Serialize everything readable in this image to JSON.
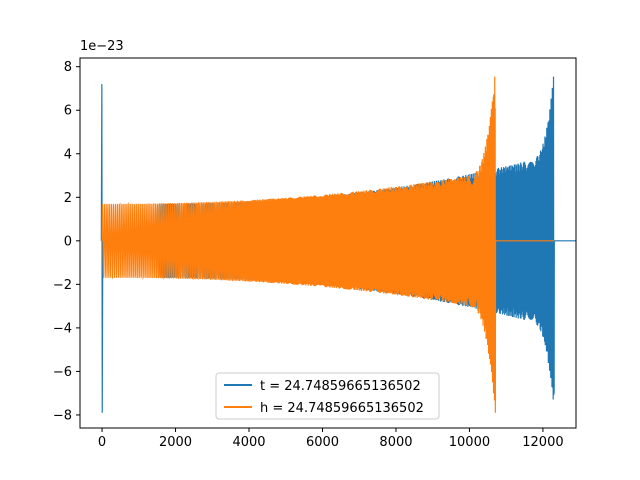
{
  "chart_data": {
    "type": "line",
    "offset_label": "1e−23",
    "xlim": [
      -600,
      12900
    ],
    "ylim": [
      -8.6,
      8.4
    ],
    "x_ticks": [
      0,
      2000,
      4000,
      6000,
      8000,
      10000,
      12000
    ],
    "x_tick_labels": [
      "0",
      "2000",
      "4000",
      "6000",
      "8000",
      "10000",
      "12000"
    ],
    "y_ticks": [
      -8,
      -6,
      -4,
      -2,
      0,
      2,
      4,
      6,
      8
    ],
    "y_tick_labels": [
      "−8",
      "−6",
      "−4",
      "−2",
      "0",
      "2",
      "4",
      "6",
      "8"
    ],
    "grid": false,
    "legend_position": "bottom-center",
    "series": [
      {
        "name": "t = 24.74859665136502",
        "color": "#1f77b4",
        "description_points": {
          "initial_spike": {
            "x": 0,
            "ymax": 7.2,
            "ymin": -7.9
          },
          "flat_until": 1500,
          "oscillation_start_amplitude": 1.7,
          "amplitude_at_12000": 4.0,
          "merger_x": 12300,
          "merger_ymax": 7.8,
          "merger_ymin": -7.0
        }
      },
      {
        "name": "h = 24.74859665136502",
        "color": "#ff7f0e",
        "description_points": {
          "oscillation_start_x": 0,
          "oscillation_start_amplitude": 1.7,
          "amplitude_at_10000": 3.2,
          "merger_x": 10700,
          "merger_ymax": 7.8,
          "merger_ymin": -7.9,
          "flat_after_merger_until": 12300
        }
      }
    ]
  }
}
